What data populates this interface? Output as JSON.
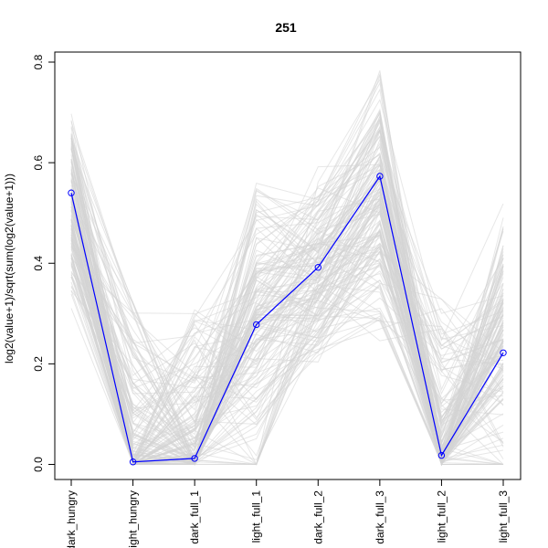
{
  "chart_data": {
    "type": "line",
    "title": "251",
    "xlabel": "",
    "ylabel": "log2(value+1)/sqrt(sum(log2(value+1)))",
    "categories": [
      "dark_hungry",
      "light_hungry",
      "dark_full_1",
      "light_full_1",
      "dark_full_2",
      "dark_full_3",
      "light_full_2",
      "light_full_3"
    ],
    "yticks": [
      0.0,
      0.2,
      0.4,
      0.6,
      0.8
    ],
    "ytick_labels": [
      "0.0",
      "0.2",
      "0.4",
      "0.6",
      "0.8"
    ],
    "ylim": [
      -0.03,
      0.82
    ],
    "grid": false,
    "highlight_color": "#0000ff",
    "background_color": "#d3d3d3",
    "series": [
      {
        "values": [
          0.54,
          0.005,
          0.012,
          0.278,
          0.392,
          0.573,
          0.018,
          0.222
        ],
        "highlight": true
      }
    ],
    "background_band": {
      "count": 160,
      "low": [
        0.28,
        0.0,
        0.0,
        0.0,
        0.17,
        0.22,
        0.0,
        0.0
      ],
      "high": [
        0.75,
        0.33,
        0.32,
        0.59,
        0.6,
        0.82,
        0.33,
        0.53
      ]
    }
  }
}
